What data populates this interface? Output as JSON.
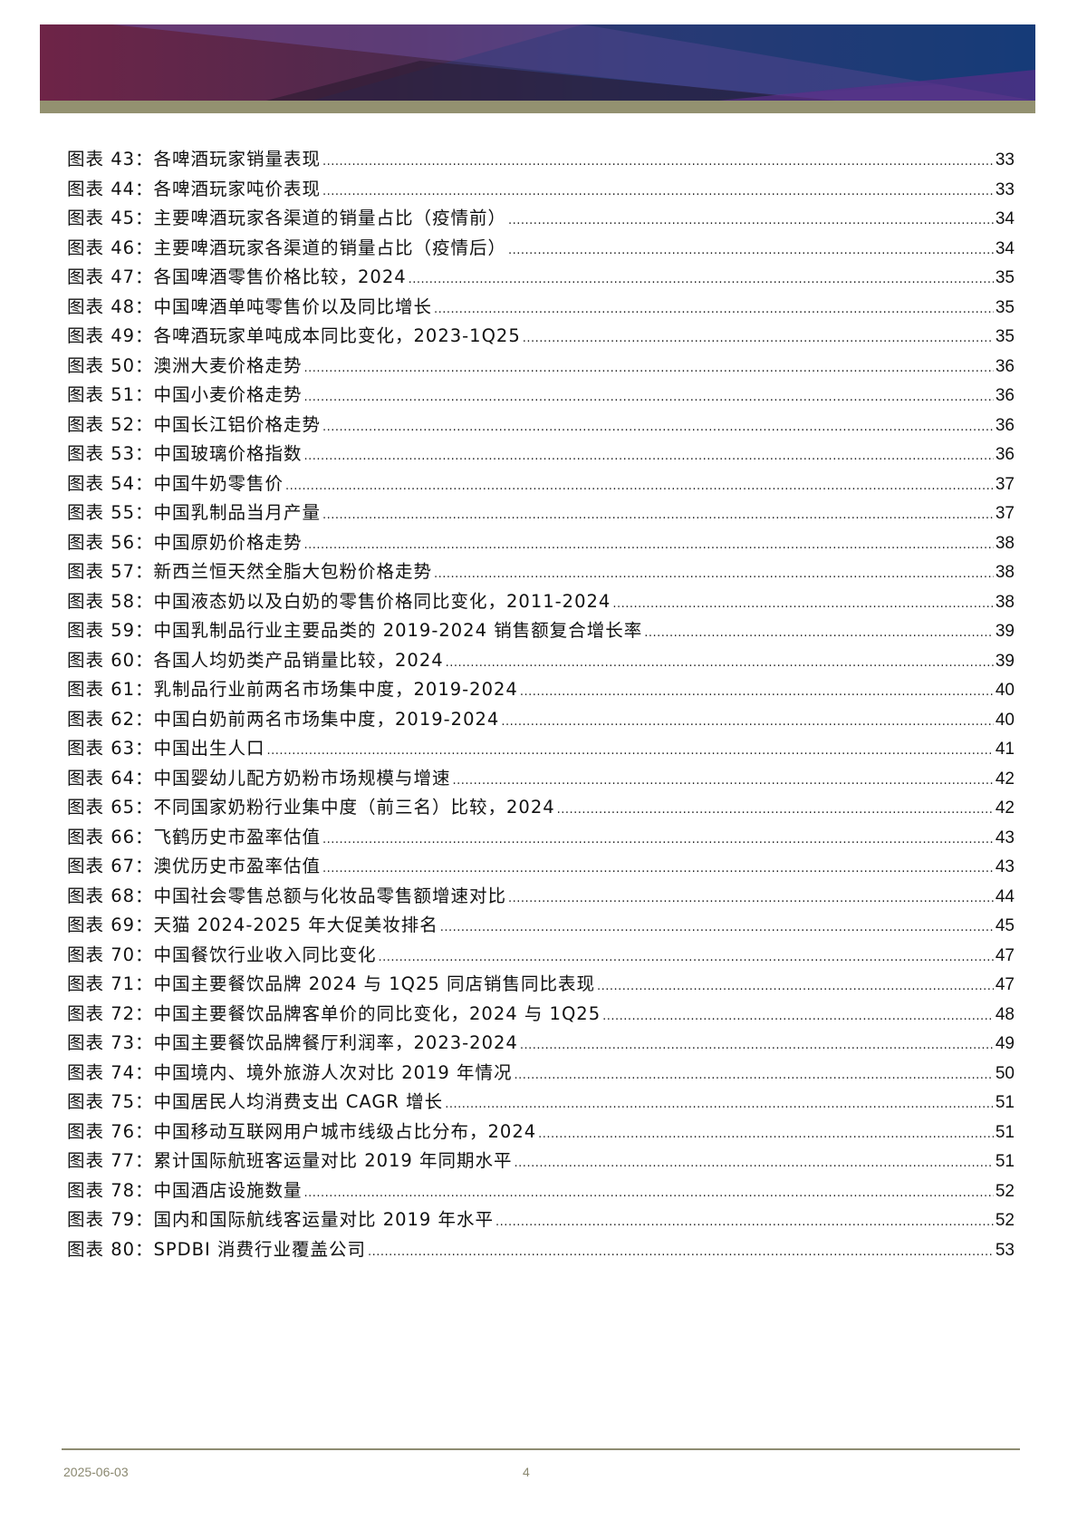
{
  "entries": [
    {
      "label": "图表 43：各啤酒玩家销量表现",
      "page": "33"
    },
    {
      "label": "图表 44：各啤酒玩家吨价表现",
      "page": "33"
    },
    {
      "label": "图表 45：主要啤酒玩家各渠道的销量占比（疫情前）",
      "page": "34"
    },
    {
      "label": "图表 46：主要啤酒玩家各渠道的销量占比（疫情后）",
      "page": "34"
    },
    {
      "label": "图表 47：各国啤酒零售价格比较，2024",
      "page": "35"
    },
    {
      "label": "图表 48：中国啤酒单吨零售价以及同比增长",
      "page": "35"
    },
    {
      "label": "图表 49：各啤酒玩家单吨成本同比变化，2023-1Q25",
      "page": "35"
    },
    {
      "label": "图表 50：澳洲大麦价格走势",
      "page": "36"
    },
    {
      "label": "图表 51：中国小麦价格走势",
      "page": "36"
    },
    {
      "label": "图表 52：中国长江铝价格走势",
      "page": "36"
    },
    {
      "label": "图表 53：中国玻璃价格指数",
      "page": "36"
    },
    {
      "label": "图表 54：中国牛奶零售价",
      "page": "37"
    },
    {
      "label": "图表 55：中国乳制品当月产量",
      "page": "37"
    },
    {
      "label": "图表 56：中国原奶价格走势",
      "page": "38"
    },
    {
      "label": "图表 57：新西兰恒天然全脂大包粉价格走势",
      "page": "38"
    },
    {
      "label": "图表 58：中国液态奶以及白奶的零售价格同比变化，2011-2024",
      "page": "38"
    },
    {
      "label": "图表 59：中国乳制品行业主要品类的 2019-2024 销售额复合增长率",
      "page": "39"
    },
    {
      "label": "图表 60：各国人均奶类产品销量比较，2024",
      "page": "39"
    },
    {
      "label": "图表 61：乳制品行业前两名市场集中度，2019-2024",
      "page": "40"
    },
    {
      "label": "图表 62：中国白奶前两名市场集中度，2019-2024",
      "page": "40"
    },
    {
      "label": "图表 63：中国出生人口",
      "page": "41"
    },
    {
      "label": "图表 64：中国婴幼儿配方奶粉市场规模与增速",
      "page": "42"
    },
    {
      "label": "图表 65：不同国家奶粉行业集中度（前三名）比较，2024",
      "page": "42"
    },
    {
      "label": "图表 66：飞鹤历史市盈率估值",
      "page": "43"
    },
    {
      "label": "图表 67：澳优历史市盈率估值",
      "page": "43"
    },
    {
      "label": "图表 68：中国社会零售总额与化妆品零售额增速对比",
      "page": "44"
    },
    {
      "label": "图表 69：天猫 2024-2025 年大促美妆排名",
      "page": "45"
    },
    {
      "label": "图表 70：中国餐饮行业收入同比变化",
      "page": "47"
    },
    {
      "label": "图表 71：中国主要餐饮品牌 2024 与 1Q25 同店销售同比表现",
      "page": "47"
    },
    {
      "label": "图表 72：中国主要餐饮品牌客单价的同比变化，2024 与 1Q25",
      "page": "48"
    },
    {
      "label": "图表 73：中国主要餐饮品牌餐厅利润率，2023-2024",
      "page": "49"
    },
    {
      "label": "图表 74：中国境内、境外旅游人次对比 2019 年情况",
      "page": "50"
    },
    {
      "label": "图表 75：中国居民人均消费支出 CAGR 增长",
      "page": "51"
    },
    {
      "label": "图表 76：中国移动互联网用户城市线级占比分布，2024",
      "page": "51"
    },
    {
      "label": "图表 77：累计国际航班客运量对比 2019 年同期水平",
      "page": "51"
    },
    {
      "label": "图表 78：中国酒店设施数量",
      "page": "52"
    },
    {
      "label": "图表 79：国内和国际航线客运量对比 2019 年水平",
      "page": "52"
    },
    {
      "label": "图表 80：SPDBI 消费行业覆盖公司",
      "page": "53"
    }
  ],
  "footer": {
    "date": "2025-06-03",
    "page_number": "4"
  }
}
